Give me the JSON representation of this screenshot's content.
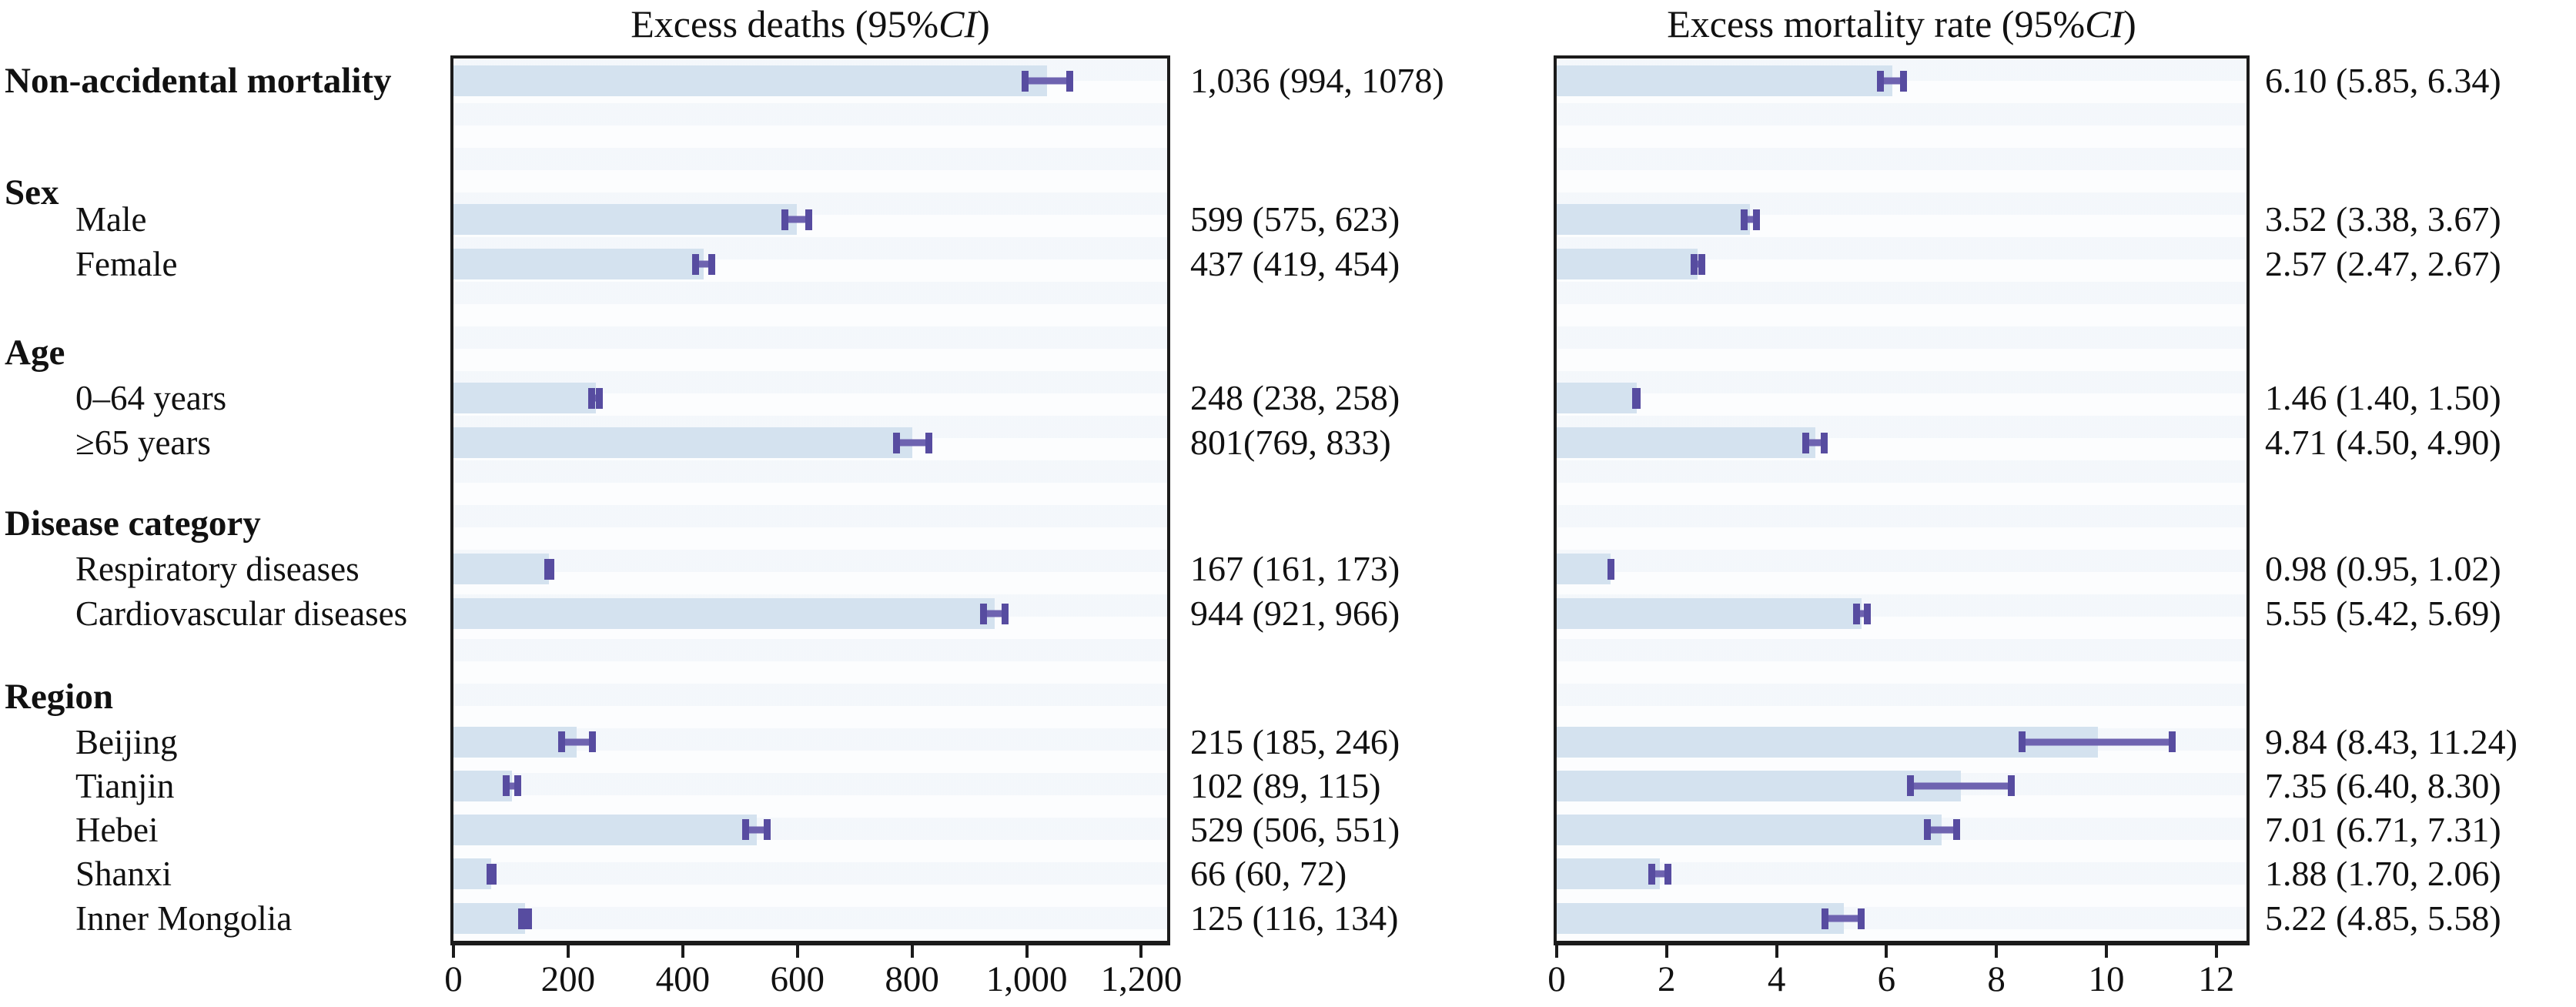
{
  "figure": {
    "left_title": {
      "pre": "Excess deaths (95% ",
      "italic": "CI",
      "post": ")"
    },
    "right_title": {
      "pre": "Excess mortality rate (95% ",
      "italic": "CI",
      "post": ")"
    }
  },
  "chart_data": {
    "type": "bar",
    "orientation": "horizontal",
    "panels": [
      {
        "id": "deaths",
        "title": "Excess deaths (95% CI)",
        "tick_labels": [
          "0",
          "200",
          "400",
          "600",
          "800",
          "1,000",
          "1,200"
        ],
        "tick_values": [
          0,
          200,
          400,
          600,
          800,
          1000,
          1200
        ],
        "xlim": [
          0,
          1245
        ],
        "grid": false
      },
      {
        "id": "rate",
        "title": "Excess mortality rate (95% CI)",
        "tick_labels": [
          "0",
          "2",
          "4",
          "6",
          "8",
          "10",
          "12"
        ],
        "tick_values": [
          0,
          2,
          4,
          6,
          8,
          10,
          12
        ],
        "xlim": [
          0,
          12.55
        ],
        "grid": false
      }
    ],
    "groups": [
      {
        "header": null,
        "items": [
          {
            "label": "Non-accidental mortality",
            "emphasis": true,
            "deaths": {
              "est": 1036,
              "lo": 994,
              "hi": 1078,
              "text": "1,036 (994, 1078)"
            },
            "rate": {
              "est": 6.1,
              "lo": 5.85,
              "hi": 6.34,
              "text": "6.10 (5.85, 6.34)"
            }
          }
        ]
      },
      {
        "header": "Sex",
        "items": [
          {
            "label": "Male",
            "emphasis": false,
            "deaths": {
              "est": 599,
              "lo": 575,
              "hi": 623,
              "text": "599 (575, 623)"
            },
            "rate": {
              "est": 3.52,
              "lo": 3.38,
              "hi": 3.67,
              "text": "3.52 (3.38, 3.67)"
            }
          },
          {
            "label": "Female",
            "emphasis": false,
            "deaths": {
              "est": 437,
              "lo": 419,
              "hi": 454,
              "text": "437 (419, 454)"
            },
            "rate": {
              "est": 2.57,
              "lo": 2.47,
              "hi": 2.67,
              "text": "2.57 (2.47, 2.67)"
            }
          }
        ]
      },
      {
        "header": "Age",
        "items": [
          {
            "label": "0–64 years",
            "emphasis": false,
            "deaths": {
              "est": 248,
              "lo": 238,
              "hi": 258,
              "text": "248 (238, 258)"
            },
            "rate": {
              "est": 1.46,
              "lo": 1.4,
              "hi": 1.5,
              "text": "1.46 (1.40, 1.50)"
            }
          },
          {
            "label": "≥65 years",
            "emphasis": false,
            "deaths": {
              "est": 801,
              "lo": 769,
              "hi": 833,
              "text": "801(769, 833)"
            },
            "rate": {
              "est": 4.71,
              "lo": 4.5,
              "hi": 4.9,
              "text": "4.71 (4.50, 4.90)"
            }
          }
        ]
      },
      {
        "header": "Disease category",
        "items": [
          {
            "label": "Respiratory diseases",
            "emphasis": false,
            "deaths": {
              "est": 167,
              "lo": 161,
              "hi": 173,
              "text": "167 (161, 173)"
            },
            "rate": {
              "est": 0.98,
              "lo": 0.95,
              "hi": 1.02,
              "text": "0.98 (0.95, 1.02)"
            }
          },
          {
            "label": "Cardiovascular diseases",
            "emphasis": false,
            "deaths": {
              "est": 944,
              "lo": 921,
              "hi": 966,
              "text": "944 (921, 966)"
            },
            "rate": {
              "est": 5.55,
              "lo": 5.42,
              "hi": 5.69,
              "text": "5.55 (5.42, 5.69)"
            }
          }
        ]
      },
      {
        "header": "Region",
        "items": [
          {
            "label": "Beijing",
            "emphasis": false,
            "deaths": {
              "est": 215,
              "lo": 185,
              "hi": 246,
              "text": "215 (185, 246)"
            },
            "rate": {
              "est": 9.84,
              "lo": 8.43,
              "hi": 11.24,
              "text": "9.84 (8.43, 11.24)"
            }
          },
          {
            "label": "Tianjin",
            "emphasis": false,
            "deaths": {
              "est": 102,
              "lo": 89,
              "hi": 115,
              "text": "102 (89, 115)"
            },
            "rate": {
              "est": 7.35,
              "lo": 6.4,
              "hi": 8.3,
              "text": "7.35 (6.40, 8.30)"
            }
          },
          {
            "label": "Hebei",
            "emphasis": false,
            "deaths": {
              "est": 529,
              "lo": 506,
              "hi": 551,
              "text": "529 (506, 551)"
            },
            "rate": {
              "est": 7.01,
              "lo": 6.71,
              "hi": 7.31,
              "text": "7.01 (6.71, 7.31)"
            }
          },
          {
            "label": "Shanxi",
            "emphasis": false,
            "deaths": {
              "est": 66,
              "lo": 60,
              "hi": 72,
              "text": "66 (60, 72)"
            },
            "rate": {
              "est": 1.88,
              "lo": 1.7,
              "hi": 2.06,
              "text": "1.88 (1.70, 2.06)"
            }
          },
          {
            "label": "Inner Mongolia",
            "emphasis": false,
            "deaths": {
              "est": 125,
              "lo": 116,
              "hi": 134,
              "text": "125 (116, 134)"
            },
            "rate": {
              "est": 5.22,
              "lo": 4.85,
              "hi": 5.58,
              "text": "5.22 (4.85, 5.58)"
            }
          }
        ]
      }
    ],
    "colors": {
      "bar_fill": "#d4e2ef",
      "ci_line": "#6e63b0",
      "ci_cap": "#574ca0",
      "panel_border": "#1b1b1b",
      "text": "#111111"
    }
  }
}
